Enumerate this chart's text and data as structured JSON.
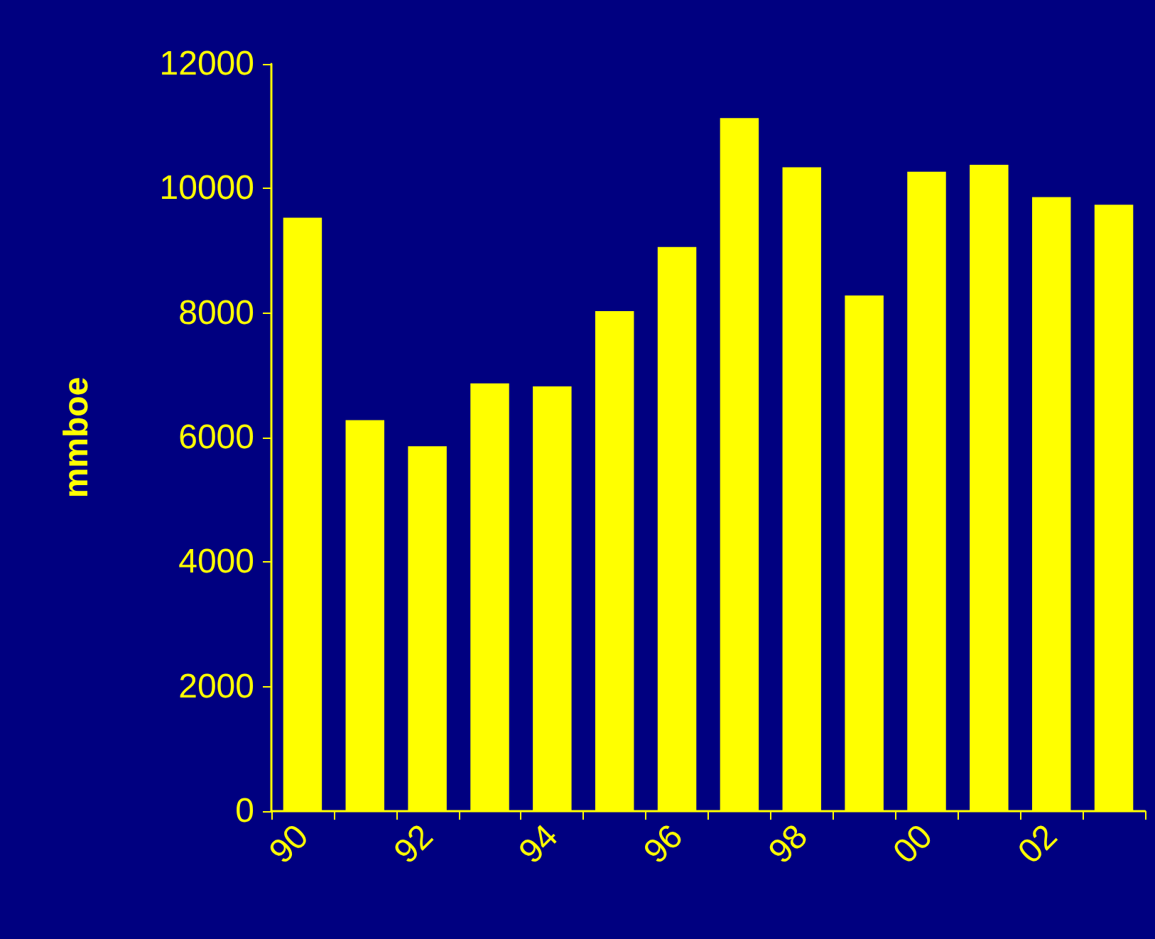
{
  "chart_data": {
    "type": "bar",
    "ylabel": "mmboe",
    "categories": [
      "90",
      null,
      "92",
      null,
      "94",
      null,
      "96",
      null,
      "98",
      null,
      "00",
      null,
      "02",
      null
    ],
    "values": [
      9530,
      6280,
      5860,
      6870,
      6820,
      8030,
      9060,
      11130,
      10340,
      8280,
      10270,
      10380,
      9860,
      9740
    ],
    "color": "#ffff00",
    "ylim": [
      0,
      12000
    ],
    "yticks": [
      0,
      2000,
      4000,
      6000,
      8000,
      10000,
      12000
    ],
    "grid": false
  }
}
